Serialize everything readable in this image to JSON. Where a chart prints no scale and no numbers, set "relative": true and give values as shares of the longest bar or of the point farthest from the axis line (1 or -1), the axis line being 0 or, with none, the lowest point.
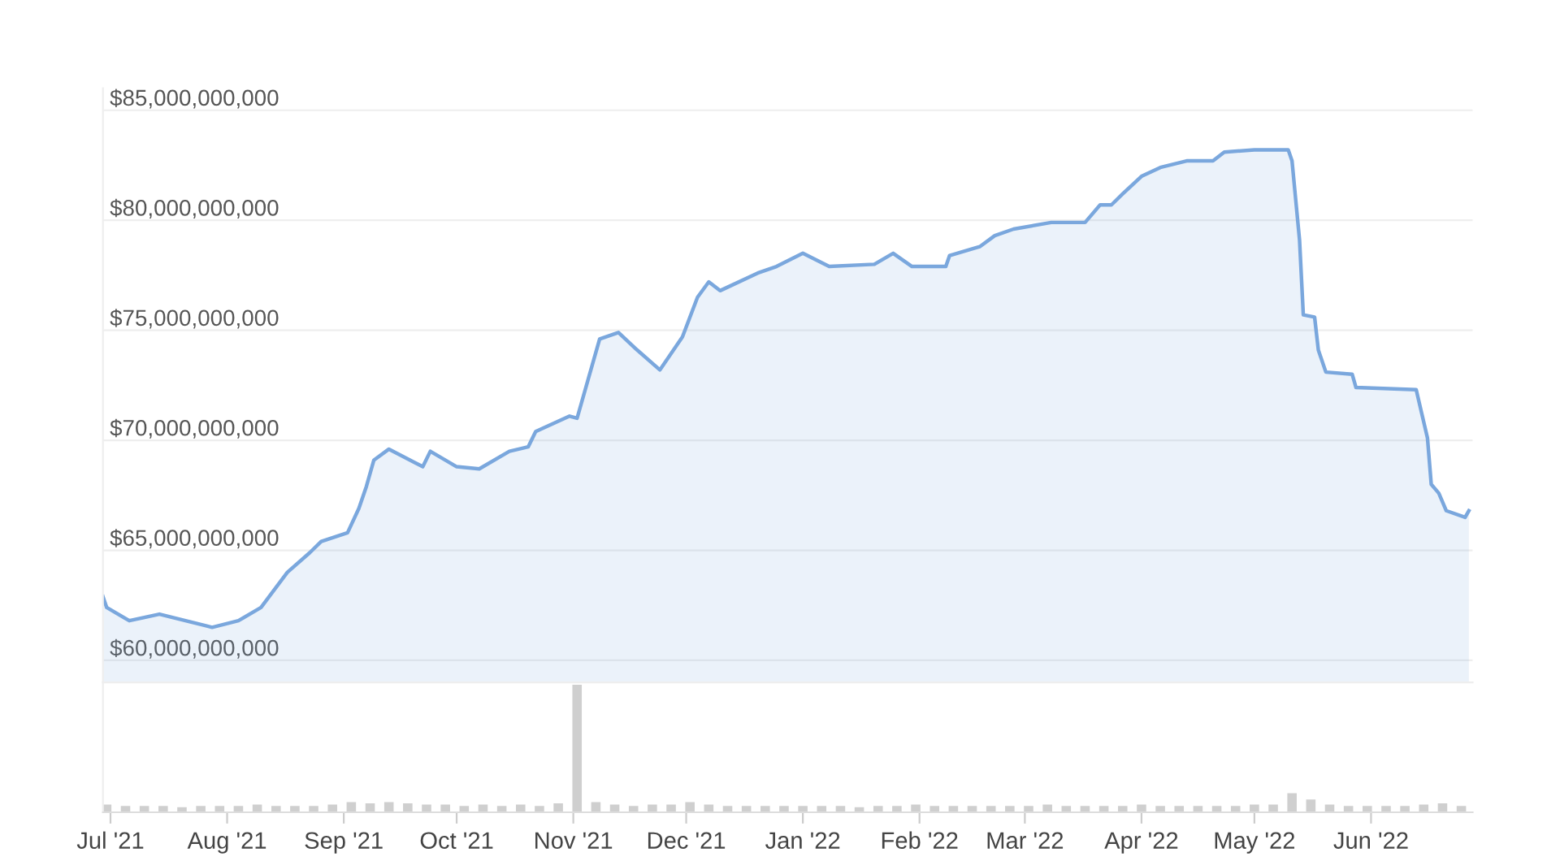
{
  "chart_data": [
    {
      "type": "area",
      "x": [
        "2021-06-29",
        "2021-06-30",
        "2021-07-06",
        "2021-07-14",
        "2021-07-28",
        "2021-08-04",
        "2021-08-10",
        "2021-08-17",
        "2021-08-23",
        "2021-08-26",
        "2021-09-02",
        "2021-09-05",
        "2021-09-07",
        "2021-09-09",
        "2021-09-13",
        "2021-09-22",
        "2021-09-24",
        "2021-10-01",
        "2021-10-07",
        "2021-10-15",
        "2021-10-20",
        "2021-10-22",
        "2021-10-31",
        "2021-11-02",
        "2021-11-05",
        "2021-11-08",
        "2021-11-13",
        "2021-11-18",
        "2021-11-24",
        "2021-11-30",
        "2021-12-04",
        "2021-12-07",
        "2021-12-10",
        "2021-12-20",
        "2021-12-25",
        "2022-01-01",
        "2022-01-08",
        "2022-01-20",
        "2022-01-25",
        "2022-01-30",
        "2022-02-08",
        "2022-02-09",
        "2022-02-17",
        "2022-02-21",
        "2022-02-26",
        "2022-03-08",
        "2022-03-17",
        "2022-03-21",
        "2022-03-24",
        "2022-03-27",
        "2022-04-01",
        "2022-04-06",
        "2022-04-13",
        "2022-04-20",
        "2022-04-23",
        "2022-05-01",
        "2022-05-10",
        "2022-05-11",
        "2022-05-13",
        "2022-05-14",
        "2022-05-17",
        "2022-05-18",
        "2022-05-20",
        "2022-05-27",
        "2022-05-28",
        "2022-06-13",
        "2022-06-16",
        "2022-06-17",
        "2022-06-19",
        "2022-06-21",
        "2022-06-26",
        "2022-06-27"
      ],
      "series": [
        {
          "color": "#7aa7dd",
          "values": [
            62900000000,
            62400000000,
            61800000000,
            62100000000,
            61500000000,
            61800000000,
            62400000000,
            64000000000,
            64900000000,
            65400000000,
            65800000000,
            66900000000,
            67900000000,
            69100000000,
            69600000000,
            68800000000,
            69500000000,
            68800000000,
            68700000000,
            69500000000,
            69700000000,
            70400000000,
            71100000000,
            71000000000,
            72800000000,
            74600000000,
            74900000000,
            74100000000,
            73200000000,
            74700000000,
            76500000000,
            77200000000,
            76800000000,
            77600000000,
            77900000000,
            78500000000,
            77900000000,
            78000000000,
            78500000000,
            77900000000,
            77900000000,
            78400000000,
            78800000000,
            79300000000,
            79600000000,
            79900000000,
            79900000000,
            80700000000,
            80700000000,
            81200000000,
            82000000000,
            82400000000,
            82700000000,
            82700000000,
            83100000000,
            83200000000,
            83200000000,
            82700000000,
            79100000000,
            75700000000,
            75600000000,
            74100000000,
            73100000000,
            73000000000,
            72400000000,
            72300000000,
            70100000000,
            68000000000,
            67600000000,
            66800000000,
            66500000000,
            66800000000
          ]
        }
      ],
      "xlim": [
        "2021-06-29",
        "2022-06-28"
      ],
      "ylim": [
        59000000000,
        86000000000
      ],
      "yticks": [
        {
          "value": 60000000000,
          "label": "$60,000,000,000"
        },
        {
          "value": 65000000000,
          "label": "$65,000,000,000"
        },
        {
          "value": 70000000000,
          "label": "$70,000,000,000"
        },
        {
          "value": 75000000000,
          "label": "$75,000,000,000"
        },
        {
          "value": 80000000000,
          "label": "$80,000,000,000"
        },
        {
          "value": 85000000000,
          "label": "$85,000,000,000"
        }
      ],
      "grid": "y",
      "tick_labels": "y"
    },
    {
      "type": "bar",
      "relative": true,
      "x": [
        "2021-06-30",
        "2021-07-05",
        "2021-07-10",
        "2021-07-15",
        "2021-07-20",
        "2021-07-25",
        "2021-07-30",
        "2021-08-04",
        "2021-08-09",
        "2021-08-14",
        "2021-08-19",
        "2021-08-24",
        "2021-08-29",
        "2021-09-03",
        "2021-09-08",
        "2021-09-13",
        "2021-09-18",
        "2021-09-23",
        "2021-09-28",
        "2021-10-03",
        "2021-10-08",
        "2021-10-13",
        "2021-10-18",
        "2021-10-23",
        "2021-10-28",
        "2021-11-02",
        "2021-11-07",
        "2021-11-12",
        "2021-11-17",
        "2021-11-22",
        "2021-11-27",
        "2021-12-02",
        "2021-12-07",
        "2021-12-12",
        "2021-12-17",
        "2021-12-22",
        "2021-12-27",
        "2022-01-01",
        "2022-01-06",
        "2022-01-11",
        "2022-01-16",
        "2022-01-21",
        "2022-01-26",
        "2022-01-31",
        "2022-02-05",
        "2022-02-10",
        "2022-02-15",
        "2022-02-20",
        "2022-02-25",
        "2022-03-02",
        "2022-03-07",
        "2022-03-12",
        "2022-03-17",
        "2022-03-22",
        "2022-03-27",
        "2022-04-01",
        "2022-04-06",
        "2022-04-11",
        "2022-04-16",
        "2022-04-21",
        "2022-04-26",
        "2022-05-01",
        "2022-05-06",
        "2022-05-11",
        "2022-05-16",
        "2022-05-21",
        "2022-05-26",
        "2022-05-31",
        "2022-06-05",
        "2022-06-10",
        "2022-06-15",
        "2022-06-20",
        "2022-06-25"
      ],
      "series": [
        {
          "color": "#cfcfcf",
          "values": [
            0.06,
            0.05,
            0.05,
            0.05,
            0.04,
            0.05,
            0.05,
            0.05,
            0.06,
            0.05,
            0.05,
            0.05,
            0.06,
            0.08,
            0.07,
            0.08,
            0.07,
            0.06,
            0.06,
            0.05,
            0.06,
            0.05,
            0.06,
            0.05,
            0.07,
            1,
            0.08,
            0.06,
            0.05,
            0.06,
            0.06,
            0.08,
            0.06,
            0.05,
            0.05,
            0.05,
            0.05,
            0.05,
            0.05,
            0.05,
            0.04,
            0.05,
            0.05,
            0.06,
            0.05,
            0.05,
            0.05,
            0.05,
            0.05,
            0.05,
            0.06,
            0.05,
            0.05,
            0.05,
            0.05,
            0.06,
            0.05,
            0.05,
            0.05,
            0.05,
            0.05,
            0.06,
            0.06,
            0.15,
            0.1,
            0.06,
            0.05,
            0.05,
            0.05,
            0.05,
            0.06,
            0.07,
            0.05
          ]
        }
      ],
      "xlim": [
        "2021-06-29",
        "2022-06-28"
      ],
      "xticks": [
        {
          "value": "2021-07-01",
          "label": "Jul '21"
        },
        {
          "value": "2021-08-01",
          "label": "Aug '21"
        },
        {
          "value": "2021-09-01",
          "label": "Sep '21"
        },
        {
          "value": "2021-10-01",
          "label": "Oct '21"
        },
        {
          "value": "2021-11-01",
          "label": "Nov '21"
        },
        {
          "value": "2021-12-01",
          "label": "Dec '21"
        },
        {
          "value": "2022-01-01",
          "label": "Jan '22"
        },
        {
          "value": "2022-02-01",
          "label": "Feb '22"
        },
        {
          "value": "2022-03-01",
          "label": "Mar '22"
        },
        {
          "value": "2022-04-01",
          "label": "Apr '22"
        },
        {
          "value": "2022-05-01",
          "label": "May '22"
        },
        {
          "value": "2022-06-01",
          "label": "Jun '22"
        }
      ],
      "tick_labels": "x"
    }
  ]
}
